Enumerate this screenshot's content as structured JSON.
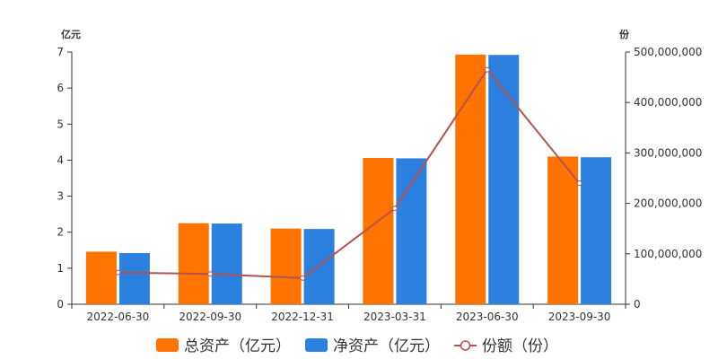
{
  "chart_data": {
    "type": "bar",
    "categories": [
      "2022-06-30",
      "2022-09-30",
      "2022-12-31",
      "2023-03-31",
      "2023-06-30",
      "2023-09-30"
    ],
    "left_axis": {
      "unit": "亿元",
      "ylim": [
        0,
        7
      ],
      "ticks": [
        "0",
        "1",
        "2",
        "3",
        "4",
        "5",
        "6",
        "7"
      ]
    },
    "right_axis": {
      "unit": "份",
      "ylim": [
        0,
        500000000
      ],
      "ticks": [
        "0",
        "100,000,000",
        "200,000,000",
        "300,000,000",
        "400,000,000",
        "500,000,000"
      ]
    },
    "series": [
      {
        "name": "总资产（亿元）",
        "type": "bar",
        "axis": "left",
        "color": "#FF7300",
        "values": [
          1.46,
          2.25,
          2.1,
          4.06,
          6.93,
          4.1
        ]
      },
      {
        "name": "净资产（亿元）",
        "type": "bar",
        "axis": "left",
        "color": "#2B80E0",
        "values": [
          1.42,
          2.24,
          2.09,
          4.05,
          6.92,
          4.08
        ]
      },
      {
        "name": "份额（份）",
        "type": "line",
        "axis": "right",
        "color": "#B5524A",
        "values": [
          63000000,
          60000000,
          52000000,
          190000000,
          465000000,
          240000000
        ]
      }
    ],
    "grid": false,
    "legend": "bottom-center"
  }
}
